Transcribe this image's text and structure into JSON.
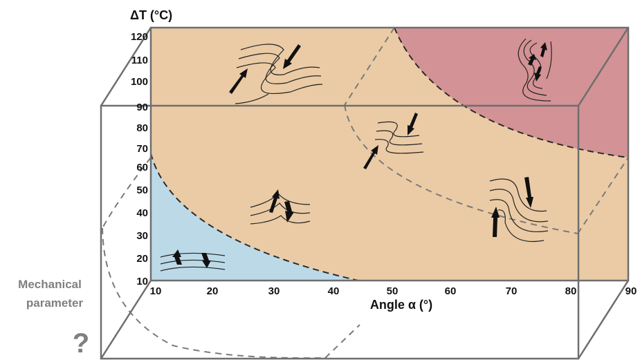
{
  "y_axis": {
    "title": "ΔT (°C)",
    "ticks": [
      "10",
      "20",
      "30",
      "40",
      "50",
      "60",
      "70",
      "80",
      "90",
      "100",
      "110",
      "120"
    ]
  },
  "x_axis": {
    "title": "Angle α (°)",
    "ticks": [
      "10",
      "20",
      "30",
      "40",
      "50",
      "60",
      "70",
      "80",
      "90"
    ]
  },
  "depth_axis": {
    "label_line1": "Mechanical",
    "label_line2": "parameter",
    "unknown_mark": "?"
  },
  "regions": {
    "low_color": "#bcd9e8",
    "mid_color": "#eacba5",
    "high_color": "#d39295",
    "box_line_color": "#6e6e6e",
    "boundary_color": "#2a2a2a"
  }
}
